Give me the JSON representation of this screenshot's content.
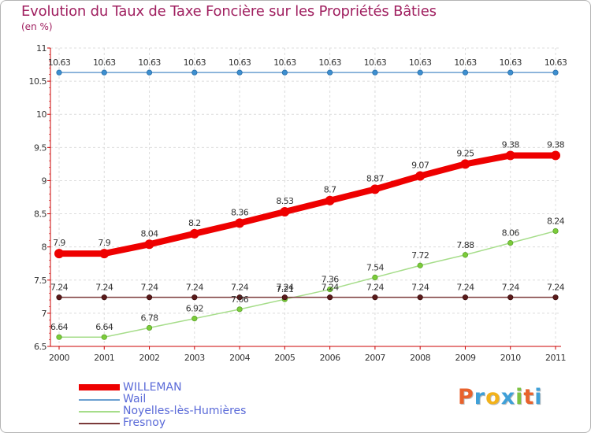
{
  "header": {
    "title": "Evolution du Taux de Taxe Foncière sur les Propriétés Bâties",
    "subtitle": "(en %)"
  },
  "brand": {
    "text": "Proxiti",
    "colors": [
      "#e8622c",
      "#3fa0d8",
      "#f2b21b",
      "#3fa0d8",
      "#7cc242",
      "#e8622c",
      "#3fa0d8"
    ]
  },
  "chart_data": {
    "type": "line",
    "title": "Evolution du Taux de Taxe Foncière sur les Propriétés Bâties",
    "ylabel": "(en %)",
    "xlabel": "",
    "categories": [
      "2000",
      "2001",
      "2002",
      "2003",
      "2004",
      "2005",
      "2006",
      "2007",
      "2008",
      "2009",
      "2010",
      "2011"
    ],
    "ylim": [
      6.5,
      11
    ],
    "yticks": [
      "6.5",
      "7",
      "7.5",
      "8",
      "8.5",
      "9",
      "9.5",
      "10",
      "10.5",
      "11"
    ],
    "grid": true,
    "legend": "bottom-left",
    "series": [
      {
        "name": "WILLEMAN",
        "color": "#ee0000",
        "values": [
          7.9,
          7.9,
          8.04,
          8.2,
          8.36,
          8.53,
          8.7,
          8.87,
          9.07,
          9.25,
          9.38,
          9.38
        ],
        "labels": [
          "7.9",
          "7.9",
          "8.04",
          "8.2",
          "8.36",
          "8.53",
          "8.7",
          "8.87",
          "9.07",
          "9.25",
          "9.38",
          "9.38"
        ]
      },
      {
        "name": "Wail",
        "color": "#6a9fd0",
        "values": [
          10.63,
          10.63,
          10.63,
          10.63,
          10.63,
          10.63,
          10.63,
          10.63,
          10.63,
          10.63,
          10.63,
          10.63
        ],
        "labels": [
          "10.63",
          "10.63",
          "10.63",
          "10.63",
          "10.63",
          "10.63",
          "10.63",
          "10.63",
          "10.63",
          "10.63",
          "10.63",
          "10.63"
        ]
      },
      {
        "name": "Noyelles-lès-Humières",
        "color": "#a6dd8a",
        "values": [
          6.64,
          6.64,
          6.78,
          6.92,
          7.06,
          7.21,
          7.36,
          7.54,
          7.72,
          7.88,
          8.06,
          8.24
        ],
        "labels": [
          "6.64",
          "6.64",
          "6.78",
          "6.92",
          "7.06",
          "7.21",
          "7.36",
          "7.54",
          "7.72",
          "7.88",
          "8.06",
          "8.24"
        ]
      },
      {
        "name": "Fresnoy",
        "color": "#7b3a3a",
        "values": [
          7.24,
          7.24,
          7.24,
          7.24,
          7.24,
          7.24,
          7.24,
          7.24,
          7.24,
          7.24,
          7.24,
          7.24
        ],
        "labels": [
          "7.24",
          "7.24",
          "7.24",
          "7.24",
          "7.24",
          "7.24",
          "7.24",
          "7.24",
          "7.24",
          "7.24",
          "7.24",
          "7.24"
        ]
      }
    ]
  }
}
